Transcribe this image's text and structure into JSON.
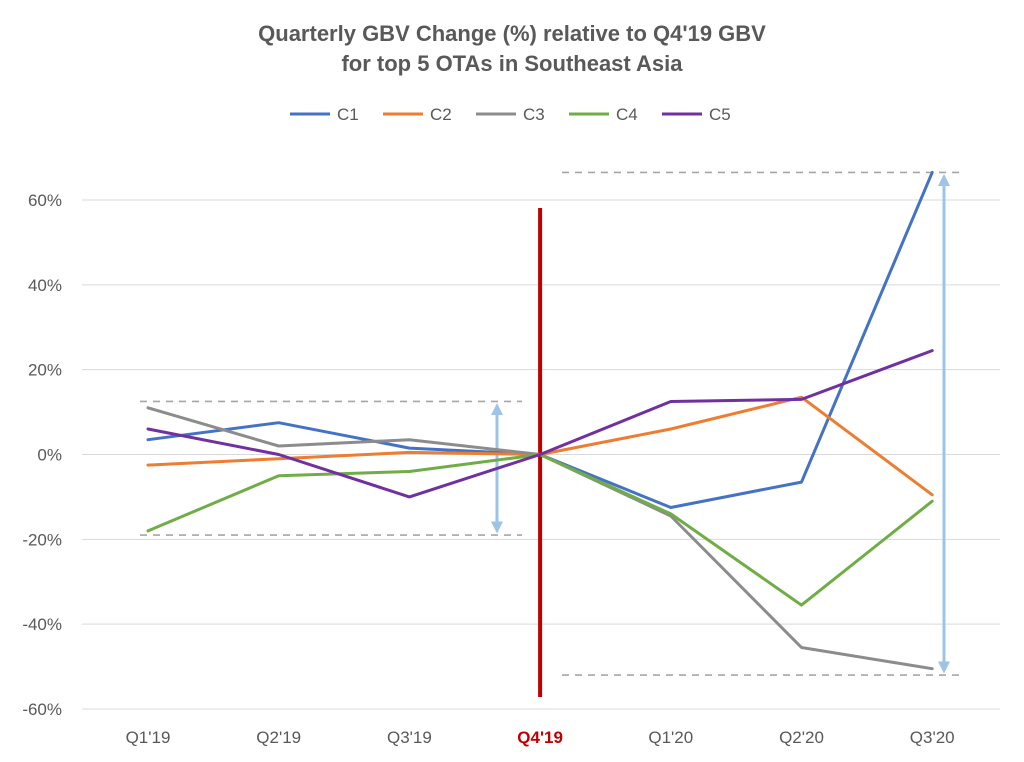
{
  "chart_data": {
    "type": "line",
    "title_line1": "Quarterly GBV Change (%) relative to Q4'19 GBV",
    "title_line2": "for top 5 OTAs in Southeast Asia",
    "categories": [
      "Q1'19",
      "Q2'19",
      "Q3'19",
      "Q4'19",
      "Q1'20",
      "Q2'20",
      "Q3'20"
    ],
    "highlight_category": "Q4'19",
    "highlight_color": "#c00000",
    "ylim": [
      -60,
      60
    ],
    "yticks": [
      "60%",
      "40%",
      "20%",
      "0%",
      "-20%",
      "-40%",
      "-60%"
    ],
    "ytick_values": [
      60,
      40,
      20,
      0,
      -20,
      -40,
      -60
    ],
    "legend_position": "top",
    "grid": true,
    "series": [
      {
        "name": "C1",
        "color": "#4472c4",
        "values": [
          3.5,
          7.5,
          1.5,
          0,
          -12.5,
          -6.5,
          66.5
        ]
      },
      {
        "name": "C2",
        "color": "#ed7d31",
        "values": [
          -2.5,
          -1,
          0.5,
          0,
          6,
          13.5,
          -9.5
        ]
      },
      {
        "name": "C3",
        "color": "#8c8c8c",
        "values": [
          11,
          2,
          3.5,
          0,
          -14.5,
          -45.5,
          -50.5
        ]
      },
      {
        "name": "C4",
        "color": "#70ad47",
        "values": [
          -18,
          -5,
          -4,
          0,
          -14,
          -35.5,
          -11
        ]
      },
      {
        "name": "C5",
        "color": "#7030a0",
        "values": [
          6,
          0,
          -10,
          0,
          12.5,
          13,
          24.5
        ]
      }
    ],
    "annotations": {
      "pre_range": [
        12.5,
        -19
      ],
      "post_range": [
        66.5,
        -52
      ]
    }
  }
}
